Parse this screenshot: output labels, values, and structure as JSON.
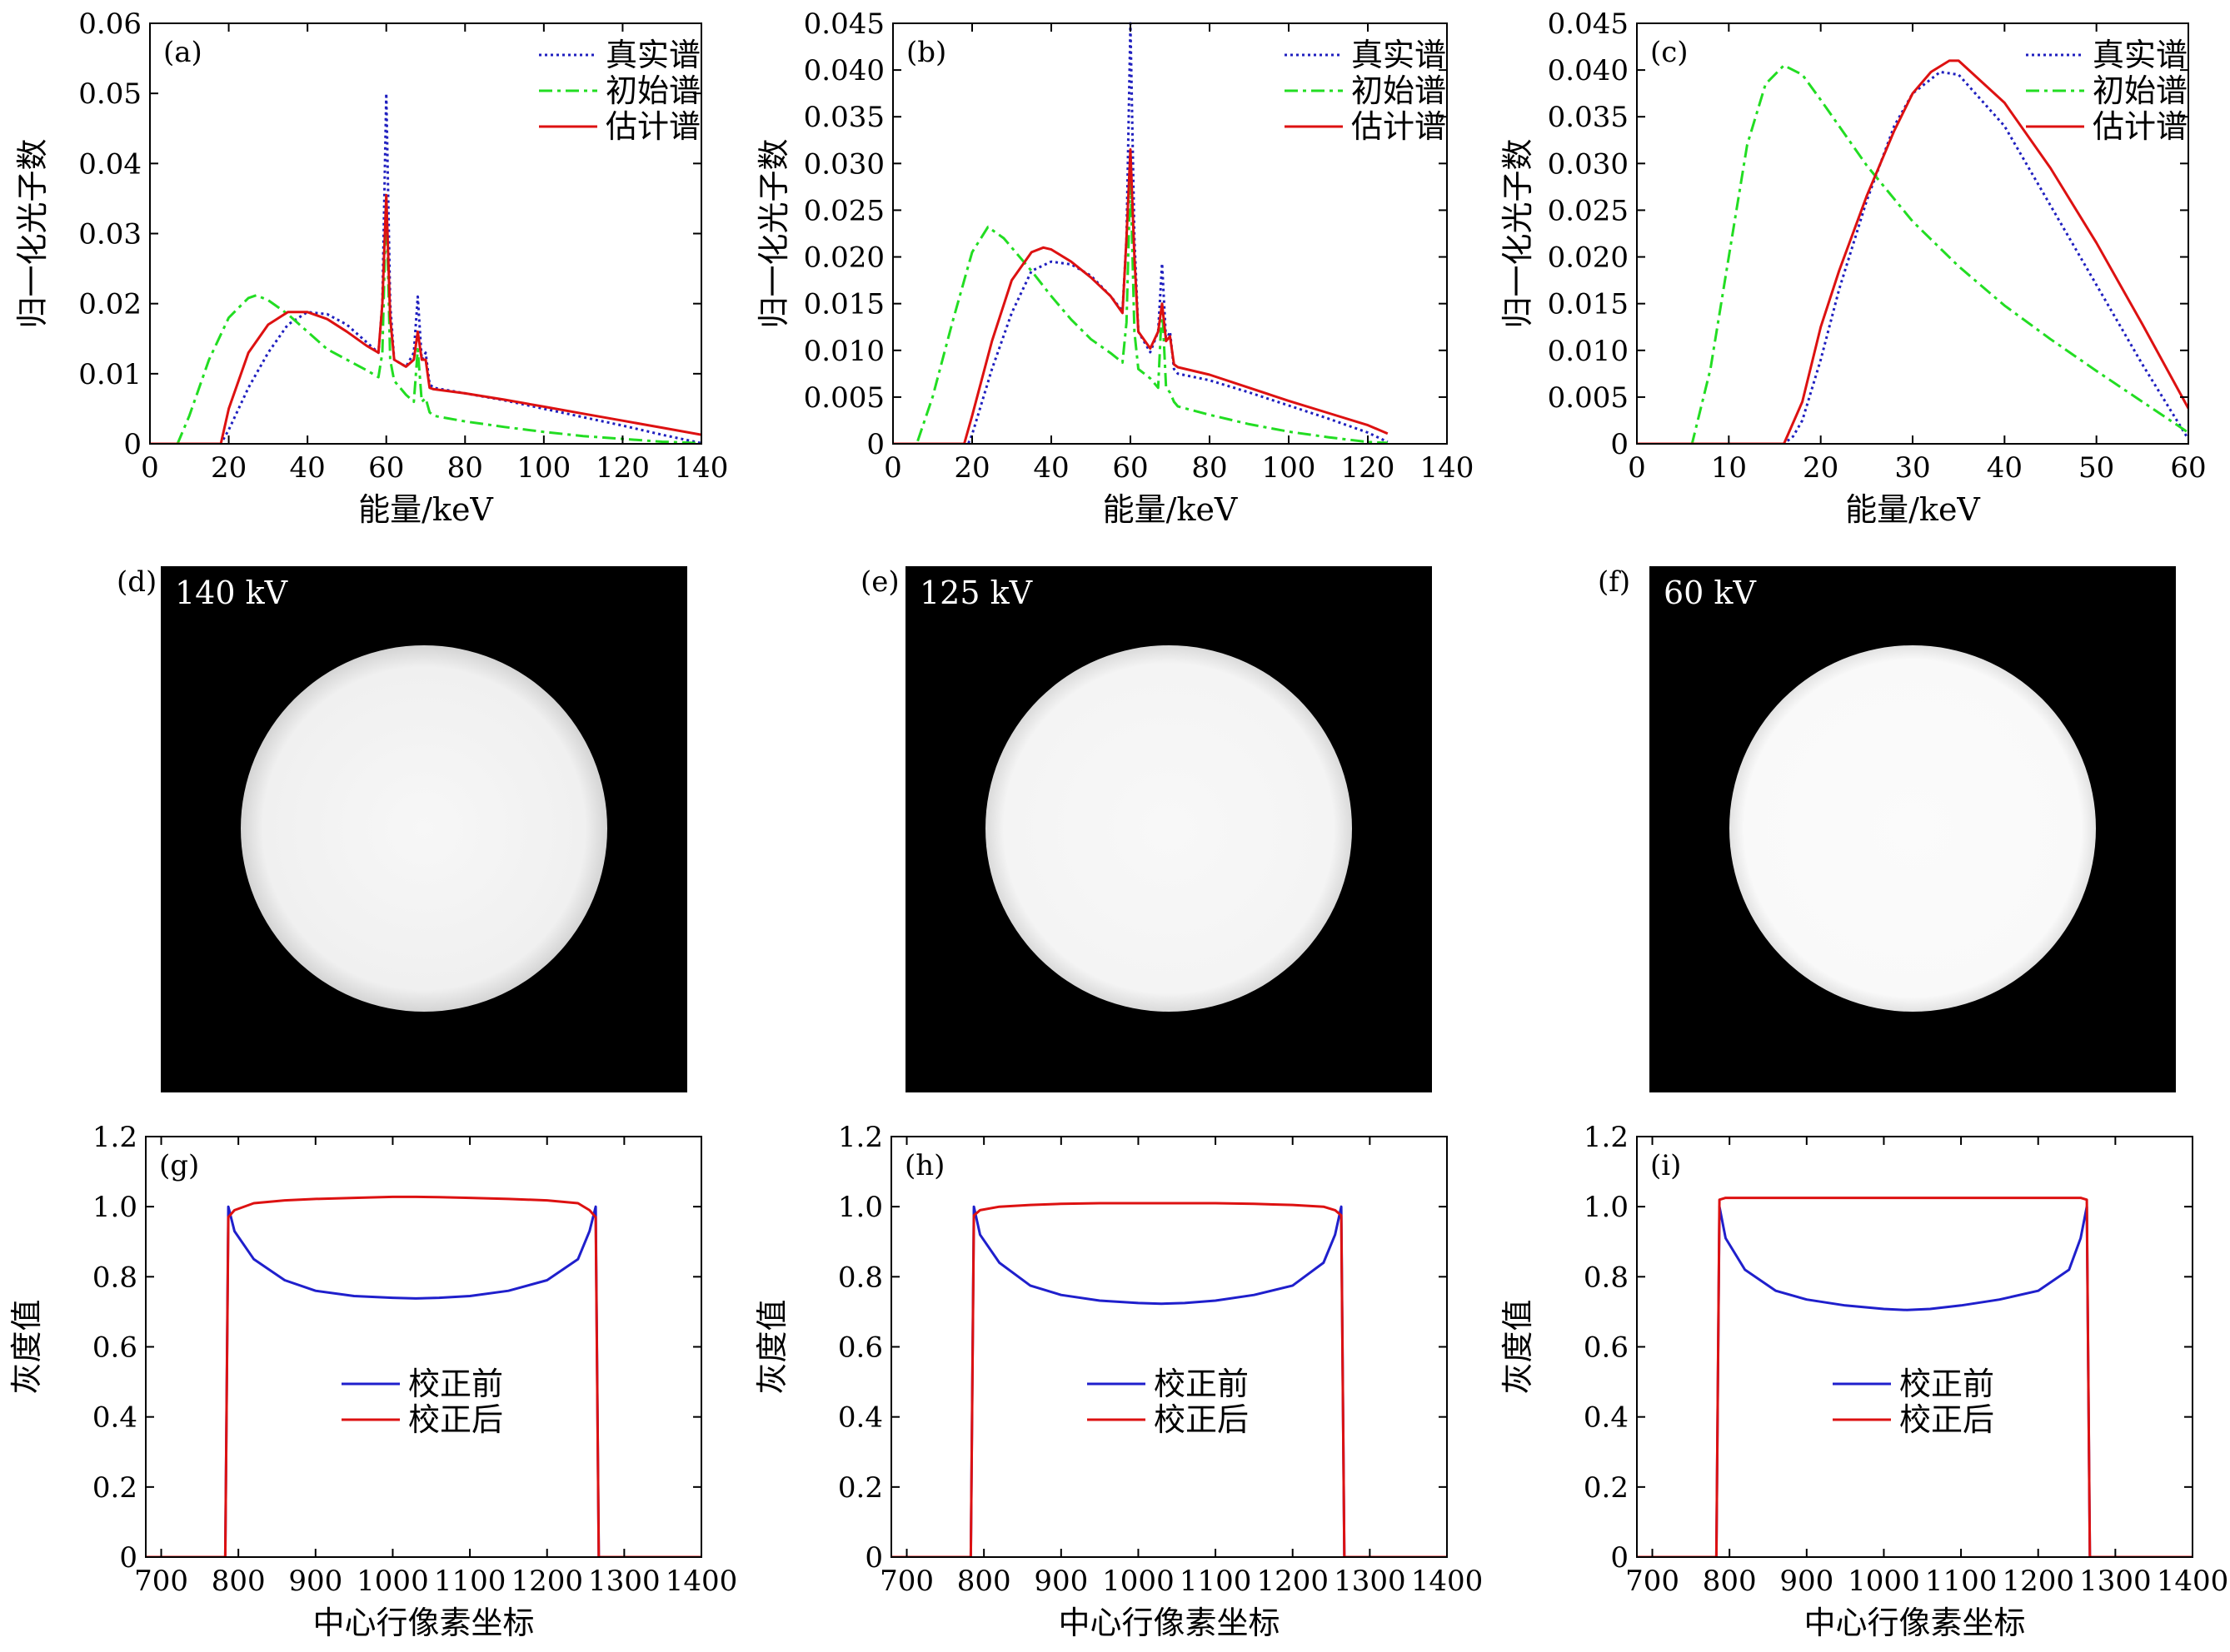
{
  "colors": {
    "true_spectrum": "#1f1fbf",
    "initial_spectrum": "#22dd22",
    "estimated_spectrum": "#dd1111",
    "before_correction": "#1f1fcc",
    "after_correction": "#dd1111"
  },
  "chart_data": [
    {
      "id": "a",
      "tag": "(a)",
      "type": "line",
      "xlabel": "能量/keV",
      "ylabel": "归一化光子数",
      "xlim": [
        0,
        140
      ],
      "ylim": [
        0,
        0.06
      ],
      "xticks": [
        0,
        20,
        40,
        60,
        80,
        100,
        120,
        140
      ],
      "yticks": [
        0,
        0.01,
        0.02,
        0.03,
        0.04,
        0.05,
        0.06
      ],
      "ytick_labels": [
        "0",
        "0.01",
        "0.02",
        "0.03",
        "0.04",
        "0.05",
        "0.06"
      ],
      "legend": {
        "position": "top-right"
      },
      "series": [
        {
          "name": "真实谱",
          "style": "dotted",
          "color_key": "true_spectrum",
          "x": [
            0,
            18,
            20,
            25,
            30,
            35,
            40,
            45,
            50,
            55,
            58,
            59,
            60,
            61,
            62,
            65,
            67,
            68,
            69,
            70,
            71,
            72,
            80,
            90,
            100,
            110,
            120,
            130,
            140
          ],
          "y": [
            0,
            0,
            0.002,
            0.008,
            0.013,
            0.017,
            0.0188,
            0.0185,
            0.017,
            0.0145,
            0.013,
            0.02,
            0.05,
            0.02,
            0.012,
            0.011,
            0.013,
            0.021,
            0.012,
            0.013,
            0.0085,
            0.008,
            0.0072,
            0.0062,
            0.005,
            0.0038,
            0.0026,
            0.0013,
            0.0001
          ]
        },
        {
          "name": "初始谱",
          "style": "dashdot",
          "color_key": "initial_spectrum",
          "x": [
            0,
            7,
            10,
            15,
            20,
            25,
            27,
            30,
            35,
            40,
            45,
            50,
            55,
            58,
            59,
            60,
            61,
            62,
            65,
            67,
            68,
            69,
            70,
            71,
            72,
            80,
            90,
            100,
            110,
            120,
            130,
            140
          ],
          "y": [
            0,
            0,
            0.004,
            0.012,
            0.018,
            0.0208,
            0.0212,
            0.0205,
            0.0185,
            0.016,
            0.0135,
            0.012,
            0.0105,
            0.0095,
            0.013,
            0.035,
            0.012,
            0.009,
            0.007,
            0.006,
            0.0135,
            0.006,
            0.0065,
            0.0045,
            0.004,
            0.0032,
            0.0024,
            0.0017,
            0.0011,
            0.0007,
            0.0003,
            0.0001
          ]
        },
        {
          "name": "估计谱",
          "style": "solid",
          "color_key": "estimated_spectrum",
          "x": [
            0,
            18,
            20,
            25,
            30,
            35,
            40,
            45,
            50,
            55,
            58,
            59,
            60,
            61,
            62,
            65,
            67,
            68,
            69,
            70,
            71,
            72,
            80,
            90,
            100,
            110,
            120,
            130,
            140
          ],
          "y": [
            0,
            0,
            0.005,
            0.013,
            0.017,
            0.0188,
            0.0188,
            0.0178,
            0.016,
            0.014,
            0.013,
            0.02,
            0.0355,
            0.018,
            0.012,
            0.011,
            0.012,
            0.016,
            0.012,
            0.012,
            0.008,
            0.0078,
            0.0072,
            0.0063,
            0.0053,
            0.0043,
            0.0033,
            0.0023,
            0.0013
          ]
        }
      ]
    },
    {
      "id": "b",
      "tag": "(b)",
      "type": "line",
      "xlabel": "能量/keV",
      "ylabel": "归一化光子数",
      "xlim": [
        0,
        140
      ],
      "ylim": [
        0,
        0.045
      ],
      "xticks": [
        0,
        20,
        40,
        60,
        80,
        100,
        120,
        140
      ],
      "yticks": [
        0,
        0.005,
        0.01,
        0.015,
        0.02,
        0.025,
        0.03,
        0.035,
        0.04,
        0.045
      ],
      "ytick_labels": [
        "0",
        "0.005",
        "0.010",
        "0.015",
        "0.020",
        "0.025",
        "0.030",
        "0.035",
        "0.040",
        "0.045"
      ],
      "legend": {
        "position": "top-right"
      },
      "series": [
        {
          "name": "真实谱",
          "style": "dotted",
          "color_key": "true_spectrum",
          "x": [
            0,
            19,
            20,
            25,
            30,
            35,
            40,
            45,
            50,
            55,
            58,
            59,
            60,
            61,
            62,
            65,
            67,
            68,
            69,
            70,
            71,
            72,
            80,
            90,
            100,
            110,
            120,
            125
          ],
          "y": [
            0,
            0,
            0.001,
            0.008,
            0.014,
            0.0185,
            0.0195,
            0.0192,
            0.018,
            0.0158,
            0.0142,
            0.022,
            0.045,
            0.022,
            0.012,
            0.0098,
            0.012,
            0.0193,
            0.011,
            0.012,
            0.008,
            0.0075,
            0.0068,
            0.0055,
            0.0041,
            0.0027,
            0.0012,
            0.0002
          ]
        },
        {
          "name": "初始谱",
          "style": "dashdot",
          "color_key": "initial_spectrum",
          "x": [
            0,
            6,
            10,
            15,
            20,
            24,
            28,
            35,
            40,
            45,
            50,
            55,
            58,
            59,
            60,
            61,
            62,
            65,
            67,
            68,
            69,
            70,
            71,
            72,
            80,
            90,
            100,
            110,
            120,
            125
          ],
          "y": [
            0,
            0,
            0.005,
            0.013,
            0.0205,
            0.0232,
            0.022,
            0.0185,
            0.0158,
            0.0133,
            0.0112,
            0.0097,
            0.0087,
            0.013,
            0.029,
            0.012,
            0.008,
            0.007,
            0.006,
            0.015,
            0.006,
            0.0055,
            0.0045,
            0.004,
            0.0031,
            0.0021,
            0.0013,
            0.0007,
            0.0002,
            0.0001
          ]
        },
        {
          "name": "估计谱",
          "style": "solid",
          "color_key": "estimated_spectrum",
          "x": [
            0,
            18,
            20,
            25,
            30,
            35,
            38,
            40,
            45,
            50,
            55,
            58,
            59,
            60,
            61,
            62,
            65,
            67,
            68,
            69,
            70,
            71,
            72,
            80,
            90,
            100,
            110,
            120,
            125
          ],
          "y": [
            0,
            0,
            0.003,
            0.011,
            0.0175,
            0.0205,
            0.021,
            0.0208,
            0.0195,
            0.0178,
            0.0158,
            0.014,
            0.022,
            0.0315,
            0.02,
            0.012,
            0.0102,
            0.012,
            0.015,
            0.011,
            0.0115,
            0.0085,
            0.0082,
            0.0074,
            0.006,
            0.0046,
            0.0033,
            0.002,
            0.0011
          ]
        }
      ]
    },
    {
      "id": "c",
      "tag": "(c)",
      "type": "line",
      "xlabel": "能量/keV",
      "ylabel": "归一化光子数",
      "xlim": [
        0,
        60
      ],
      "ylim": [
        0,
        0.045
      ],
      "xticks": [
        0,
        10,
        20,
        30,
        40,
        50,
        60
      ],
      "yticks": [
        0,
        0.005,
        0.01,
        0.015,
        0.02,
        0.025,
        0.03,
        0.035,
        0.04,
        0.045
      ],
      "ytick_labels": [
        "0",
        "0.005",
        "0.010",
        "0.015",
        "0.020",
        "0.025",
        "0.030",
        "0.035",
        "0.040",
        "0.045"
      ],
      "legend": {
        "position": "top-right"
      },
      "series": [
        {
          "name": "真实谱",
          "style": "dotted",
          "color_key": "true_spectrum",
          "x": [
            0,
            16,
            17,
            18,
            20,
            22,
            25,
            28,
            30,
            33,
            35,
            40,
            45,
            50,
            55,
            60
          ],
          "y": [
            0,
            0,
            0.0008,
            0.0025,
            0.009,
            0.0165,
            0.026,
            0.034,
            0.0375,
            0.0398,
            0.0395,
            0.034,
            0.0255,
            0.017,
            0.0085,
            0.0005
          ]
        },
        {
          "name": "初始谱",
          "style": "dashdot",
          "color_key": "initial_spectrum",
          "x": [
            0,
            6,
            8,
            10,
            12,
            14,
            16,
            18,
            20,
            25,
            30,
            35,
            40,
            45,
            50,
            55,
            60
          ],
          "y": [
            0,
            0,
            0.008,
            0.02,
            0.032,
            0.0385,
            0.0405,
            0.0395,
            0.0368,
            0.0298,
            0.0238,
            0.019,
            0.0148,
            0.0112,
            0.0078,
            0.0045,
            0.0012
          ]
        },
        {
          "name": "估计谱",
          "style": "solid",
          "color_key": "estimated_spectrum",
          "x": [
            0,
            16,
            18,
            20,
            22,
            25,
            28,
            30,
            32,
            34,
            35,
            40,
            45,
            50,
            55,
            60
          ],
          "y": [
            0,
            0,
            0.0045,
            0.0125,
            0.0185,
            0.0265,
            0.0335,
            0.0375,
            0.0398,
            0.041,
            0.041,
            0.0365,
            0.0295,
            0.0215,
            0.0128,
            0.0038
          ]
        }
      ]
    },
    {
      "id": "g",
      "tag": "(g)",
      "type": "line",
      "xlabel": "中心行像素坐标",
      "ylabel": "灰度值",
      "xlim": [
        680,
        1400
      ],
      "ylim": [
        0,
        1.2
      ],
      "xticks": [
        700,
        800,
        900,
        1000,
        1100,
        1200,
        1300,
        1400
      ],
      "yticks": [
        0,
        0.2,
        0.4,
        0.6,
        0.8,
        1.0,
        1.2
      ],
      "ytick_labels": [
        "0",
        "0.2",
        "0.4",
        "0.6",
        "0.8",
        "1.0",
        "1.2"
      ],
      "legend": {
        "position": "center"
      },
      "series": [
        {
          "name": "校正前",
          "style": "solid",
          "color_key": "before_correction",
          "x": [
            680,
            783,
            787,
            795,
            820,
            860,
            900,
            950,
            1000,
            1030,
            1060,
            1100,
            1150,
            1200,
            1240,
            1255,
            1263,
            1267,
            1400
          ],
          "y": [
            0,
            0,
            1.0,
            0.93,
            0.85,
            0.79,
            0.76,
            0.745,
            0.74,
            0.738,
            0.74,
            0.745,
            0.76,
            0.79,
            0.85,
            0.93,
            1.0,
            0,
            0
          ]
        },
        {
          "name": "校正后",
          "style": "solid",
          "color_key": "after_correction",
          "x": [
            680,
            783,
            787,
            795,
            820,
            860,
            900,
            950,
            1000,
            1030,
            1060,
            1100,
            1150,
            1200,
            1240,
            1255,
            1263,
            1267,
            1400
          ],
          "y": [
            0,
            0,
            0.97,
            0.99,
            1.01,
            1.018,
            1.022,
            1.025,
            1.028,
            1.028,
            1.027,
            1.025,
            1.022,
            1.018,
            1.01,
            0.99,
            0.97,
            0,
            0
          ]
        }
      ]
    },
    {
      "id": "h",
      "tag": "(h)",
      "type": "line",
      "xlabel": "中心行像素坐标",
      "ylabel": "灰度值",
      "xlim": [
        680,
        1400
      ],
      "ylim": [
        0,
        1.2
      ],
      "xticks": [
        700,
        800,
        900,
        1000,
        1100,
        1200,
        1300,
        1400
      ],
      "yticks": [
        0,
        0.2,
        0.4,
        0.6,
        0.8,
        1.0,
        1.2
      ],
      "ytick_labels": [
        "0",
        "0.2",
        "0.4",
        "0.6",
        "0.8",
        "1.0",
        "1.2"
      ],
      "legend": {
        "position": "center"
      },
      "series": [
        {
          "name": "校正前",
          "style": "solid",
          "color_key": "before_correction",
          "x": [
            680,
            783,
            787,
            795,
            820,
            860,
            900,
            950,
            1000,
            1030,
            1060,
            1100,
            1150,
            1200,
            1240,
            1255,
            1263,
            1267,
            1400
          ],
          "y": [
            0,
            0,
            1.0,
            0.92,
            0.84,
            0.775,
            0.748,
            0.732,
            0.725,
            0.723,
            0.725,
            0.732,
            0.748,
            0.775,
            0.84,
            0.92,
            1.0,
            0,
            0
          ]
        },
        {
          "name": "校正后",
          "style": "solid",
          "color_key": "after_correction",
          "x": [
            680,
            783,
            787,
            795,
            820,
            860,
            900,
            950,
            1000,
            1030,
            1060,
            1100,
            1150,
            1200,
            1240,
            1255,
            1263,
            1267,
            1400
          ],
          "y": [
            0,
            0,
            0.975,
            0.99,
            1.0,
            1.005,
            1.008,
            1.01,
            1.01,
            1.01,
            1.01,
            1.01,
            1.008,
            1.005,
            1.0,
            0.99,
            0.975,
            0,
            0
          ]
        }
      ]
    },
    {
      "id": "i",
      "tag": "(i)",
      "type": "line",
      "xlabel": "中心行像素坐标",
      "ylabel": "灰度值",
      "xlim": [
        680,
        1400
      ],
      "ylim": [
        0,
        1.2
      ],
      "xticks": [
        700,
        800,
        900,
        1000,
        1100,
        1200,
        1300,
        1400
      ],
      "yticks": [
        0,
        0.2,
        0.4,
        0.6,
        0.8,
        1.0,
        1.2
      ],
      "ytick_labels": [
        "0",
        "0.2",
        "0.4",
        "0.6",
        "0.8",
        "1.0",
        "1.2"
      ],
      "legend": {
        "position": "center"
      },
      "series": [
        {
          "name": "校正前",
          "style": "solid",
          "color_key": "before_correction",
          "x": [
            680,
            783,
            787,
            795,
            820,
            860,
            900,
            950,
            1000,
            1030,
            1060,
            1100,
            1150,
            1200,
            1240,
            1255,
            1263,
            1267,
            1400
          ],
          "y": [
            0,
            0,
            1.0,
            0.91,
            0.82,
            0.76,
            0.735,
            0.718,
            0.708,
            0.705,
            0.708,
            0.718,
            0.735,
            0.76,
            0.82,
            0.91,
            1.0,
            0,
            0
          ]
        },
        {
          "name": "校正后",
          "style": "solid",
          "color_key": "after_correction",
          "x": [
            680,
            783,
            787,
            795,
            800,
            850,
            900,
            950,
            1000,
            1030,
            1060,
            1100,
            1150,
            1200,
            1250,
            1255,
            1263,
            1267,
            1400
          ],
          "y": [
            0,
            0,
            1.02,
            1.025,
            1.025,
            1.025,
            1.025,
            1.025,
            1.025,
            1.025,
            1.025,
            1.025,
            1.025,
            1.025,
            1.025,
            1.025,
            1.02,
            0,
            0
          ]
        }
      ]
    }
  ],
  "images": [
    {
      "id": "d",
      "tag": "(d)",
      "label": "140 kV",
      "disk_color": "#f2f2f2",
      "edge_color": "#d8d8d8"
    },
    {
      "id": "e",
      "tag": "(e)",
      "label": "125 kV",
      "disk_color": "#f6f6f6",
      "edge_color": "#dedede"
    },
    {
      "id": "f",
      "tag": "(f)",
      "label": "60 kV",
      "disk_color": "#fafafa",
      "edge_color": "#e6e6e6"
    }
  ]
}
